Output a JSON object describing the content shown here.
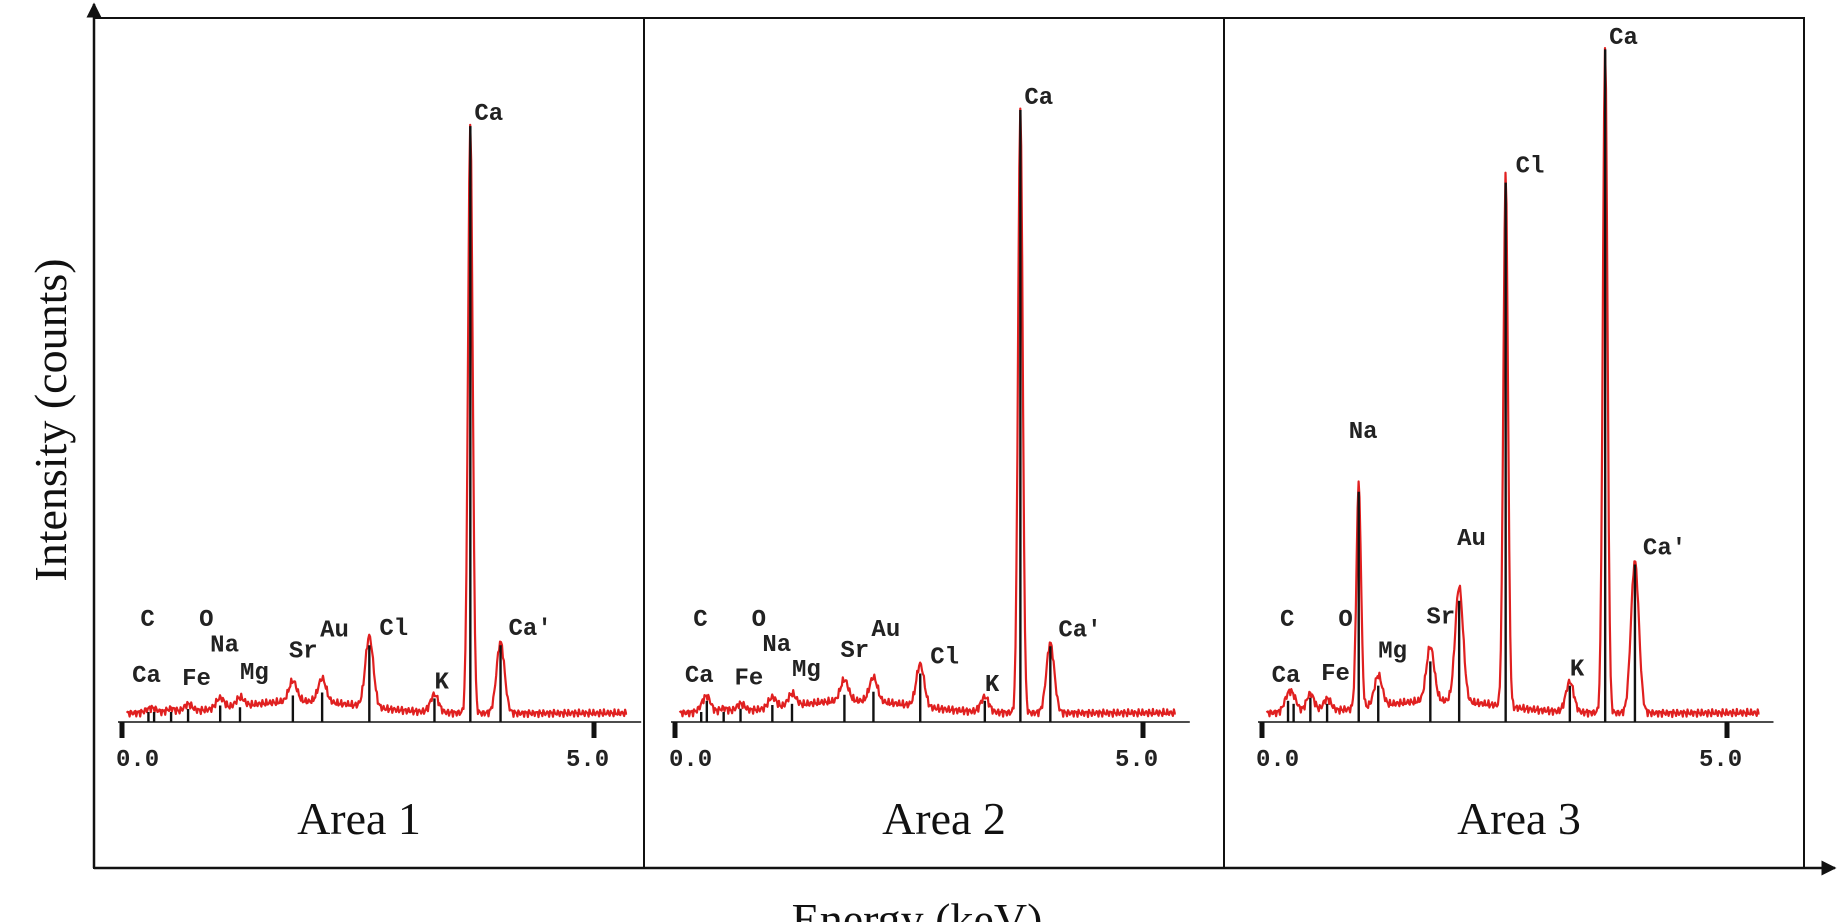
{
  "chart_data": {
    "type": "line",
    "ylabel": "Intensity (counts)",
    "xlabel": "Energy (keV)",
    "x_ticks": [
      "0.0",
      "5.0"
    ],
    "xlim": [
      0.0,
      5.0
    ],
    "colors": {
      "spectrum": "#e02020",
      "lines": "#111111"
    },
    "panels": [
      {
        "title": "Area 1",
        "peaks": [
          {
            "label": "C",
            "energy": 0.28,
            "intensity": 0.005
          },
          {
            "label": "O",
            "energy": 0.52,
            "intensity": 0.006
          },
          {
            "label": "Ca",
            "energy": 0.34,
            "intensity": 0.005
          },
          {
            "label": "Fe",
            "energy": 0.7,
            "intensity": 0.012
          },
          {
            "label": "Na",
            "energy": 1.04,
            "intensity": 0.018
          },
          {
            "label": "Mg",
            "energy": 1.25,
            "intensity": 0.015
          },
          {
            "label": "Sr",
            "energy": 1.81,
            "intensity": 0.035
          },
          {
            "label": "Au",
            "energy": 2.12,
            "intensity": 0.04
          },
          {
            "label": "Cl",
            "energy": 2.62,
            "intensity": 0.12
          },
          {
            "label": "K",
            "energy": 3.31,
            "intensity": 0.03
          },
          {
            "label": "Ca",
            "energy": 3.69,
            "intensity": 1.0
          },
          {
            "label": "Ca'",
            "energy": 4.01,
            "intensity": 0.12
          }
        ]
      },
      {
        "title": "Area 2",
        "peaks": [
          {
            "label": "C",
            "energy": 0.28,
            "intensity": 0.005
          },
          {
            "label": "O",
            "energy": 0.52,
            "intensity": 0.006
          },
          {
            "label": "Ca",
            "energy": 0.34,
            "intensity": 0.025
          },
          {
            "label": "Fe",
            "energy": 0.7,
            "intensity": 0.012
          },
          {
            "label": "Na",
            "energy": 1.04,
            "intensity": 0.018
          },
          {
            "label": "Mg",
            "energy": 1.25,
            "intensity": 0.02
          },
          {
            "label": "Sr",
            "energy": 1.81,
            "intensity": 0.035
          },
          {
            "label": "Au",
            "energy": 2.12,
            "intensity": 0.04
          },
          {
            "label": "Cl",
            "energy": 2.62,
            "intensity": 0.07
          },
          {
            "label": "K",
            "energy": 3.31,
            "intensity": 0.025
          },
          {
            "label": "Ca",
            "energy": 3.69,
            "intensity": 1.0
          },
          {
            "label": "Ca'",
            "energy": 4.01,
            "intensity": 0.115
          }
        ]
      },
      {
        "title": "Area 3",
        "peaks": [
          {
            "label": "C",
            "energy": 0.28,
            "intensity": 0.025
          },
          {
            "label": "O",
            "energy": 0.52,
            "intensity": 0.03
          },
          {
            "label": "Ca",
            "energy": 0.34,
            "intensity": 0.02
          },
          {
            "label": "Fe",
            "energy": 0.7,
            "intensity": 0.02
          },
          {
            "label": "Na",
            "energy": 1.04,
            "intensity": 0.37
          },
          {
            "label": "Mg",
            "energy": 1.25,
            "intensity": 0.05
          },
          {
            "label": "Sr",
            "energy": 1.81,
            "intensity": 0.09
          },
          {
            "label": "Au",
            "energy": 2.12,
            "intensity": 0.19
          },
          {
            "label": "Cl",
            "energy": 2.62,
            "intensity": 0.88
          },
          {
            "label": "K",
            "energy": 3.31,
            "intensity": 0.05
          },
          {
            "label": "Ca",
            "energy": 3.69,
            "intensity": 1.1
          },
          {
            "label": "Ca'",
            "energy": 4.01,
            "intensity": 0.25
          }
        ]
      }
    ]
  }
}
